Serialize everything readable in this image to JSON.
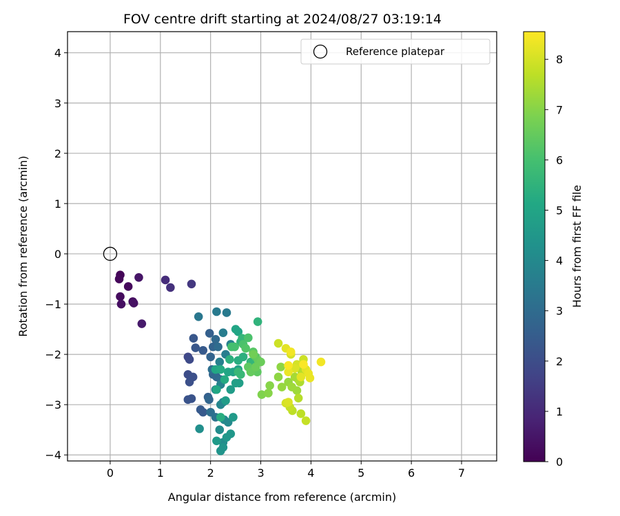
{
  "chart_data": {
    "type": "scatter",
    "title": "FOV centre drift starting at 2024/08/27 03:19:14",
    "xlabel": "Angular distance from reference (arcmin)",
    "ylabel": "Rotation from reference (arcmin)",
    "xlim": [
      -0.85,
      7.7
    ],
    "ylim": [
      -4.12,
      4.42
    ],
    "xticks": [
      0,
      1,
      2,
      3,
      4,
      5,
      6,
      7
    ],
    "yticks": [
      -4,
      -3,
      -2,
      -1,
      0,
      1,
      2,
      3,
      4
    ],
    "grid": true,
    "legend": {
      "placement": "top-right",
      "entries": [
        "Reference platepar"
      ]
    },
    "reference_point": {
      "x": 0,
      "y": 0
    },
    "colorbar": {
      "label": "Hours from first FF file",
      "range": [
        0,
        8.55
      ],
      "ticks": [
        0,
        1,
        2,
        3,
        4,
        5,
        6,
        7,
        8
      ],
      "colormap": "viridis"
    },
    "points": [
      [
        0.2,
        -0.42,
        0.1
      ],
      [
        0.18,
        -0.5,
        0.15
      ],
      [
        0.36,
        -0.65,
        0.2
      ],
      [
        0.2,
        -0.85,
        0.25
      ],
      [
        0.45,
        -0.95,
        0.3
      ],
      [
        0.22,
        -1.0,
        0.35
      ],
      [
        0.47,
        -0.98,
        0.4
      ],
      [
        0.57,
        -0.47,
        0.5
      ],
      [
        0.63,
        -1.39,
        0.6
      ],
      [
        1.1,
        -0.52,
        1.1
      ],
      [
        1.2,
        -0.67,
        1.2
      ],
      [
        1.62,
        -0.6,
        1.4
      ],
      [
        1.55,
        -2.05,
        1.8
      ],
      [
        1.58,
        -2.1,
        1.9
      ],
      [
        1.6,
        -2.45,
        2.0
      ],
      [
        1.55,
        -2.4,
        2.0
      ],
      [
        1.65,
        -2.45,
        2.1
      ],
      [
        1.58,
        -2.55,
        2.1
      ],
      [
        1.55,
        -2.9,
        2.2
      ],
      [
        1.62,
        -2.88,
        2.2
      ],
      [
        1.66,
        -1.68,
        2.3
      ],
      [
        1.7,
        -1.87,
        2.3
      ],
      [
        1.85,
        -1.92,
        2.4
      ],
      [
        1.8,
        -3.1,
        2.4
      ],
      [
        1.85,
        -3.15,
        2.4
      ],
      [
        1.95,
        -2.85,
        2.6
      ],
      [
        1.98,
        -1.58,
        2.6
      ],
      [
        2.0,
        -2.05,
        2.7
      ],
      [
        2.05,
        -1.85,
        2.7
      ],
      [
        1.97,
        -2.9,
        2.8
      ],
      [
        2.05,
        -2.4,
        2.8
      ],
      [
        2.1,
        -1.7,
        2.9
      ],
      [
        2.12,
        -2.45,
        2.9
      ],
      [
        2.15,
        -1.85,
        3.0
      ],
      [
        2.2,
        -2.5,
        3.0
      ],
      [
        2.03,
        -2.3,
        3.1
      ],
      [
        2.0,
        -3.15,
        3.1
      ],
      [
        2.1,
        -3.25,
        3.2
      ],
      [
        1.76,
        -1.25,
        3.4
      ],
      [
        2.12,
        -1.15,
        3.5
      ],
      [
        2.32,
        -1.17,
        3.5
      ],
      [
        2.25,
        -1.57,
        3.6
      ],
      [
        2.3,
        -2.0,
        3.6
      ],
      [
        2.4,
        -1.8,
        3.7
      ],
      [
        2.18,
        -2.15,
        3.7
      ],
      [
        2.2,
        -2.6,
        3.8
      ],
      [
        2.1,
        -2.7,
        3.8
      ],
      [
        2.25,
        -2.95,
        3.9
      ],
      [
        2.2,
        -3.0,
        3.9
      ],
      [
        2.27,
        -3.3,
        4.0
      ],
      [
        2.35,
        -3.35,
        4.0
      ],
      [
        2.18,
        -3.5,
        4.1
      ],
      [
        2.25,
        -3.75,
        4.1
      ],
      [
        1.78,
        -3.48,
        4.2
      ],
      [
        2.2,
        -3.92,
        4.4
      ],
      [
        2.25,
        -3.85,
        4.4
      ],
      [
        2.32,
        -3.65,
        4.5
      ],
      [
        2.4,
        -3.58,
        4.5
      ],
      [
        2.12,
        -3.72,
        4.6
      ],
      [
        2.45,
        -3.25,
        4.6
      ],
      [
        2.3,
        -2.92,
        4.7
      ],
      [
        2.4,
        -2.7,
        4.7
      ],
      [
        2.5,
        -2.57,
        4.8
      ],
      [
        2.57,
        -2.57,
        4.8
      ],
      [
        2.45,
        -2.35,
        4.9
      ],
      [
        2.55,
        -2.3,
        4.9
      ],
      [
        2.5,
        -1.5,
        5.0
      ],
      [
        2.55,
        -1.55,
        5.0
      ],
      [
        2.35,
        -2.35,
        5.0
      ],
      [
        2.1,
        -2.3,
        5.1
      ],
      [
        2.12,
        -2.7,
        5.1
      ],
      [
        2.28,
        -2.5,
        5.2
      ],
      [
        2.2,
        -2.3,
        5.2
      ],
      [
        2.2,
        -3.25,
        5.3
      ],
      [
        2.55,
        -2.12,
        5.3
      ],
      [
        2.65,
        -2.05,
        5.4
      ],
      [
        2.38,
        -2.1,
        5.4
      ],
      [
        2.6,
        -1.75,
        5.5
      ],
      [
        2.94,
        -1.35,
        5.5
      ],
      [
        2.63,
        -1.68,
        5.6
      ],
      [
        2.8,
        -2.15,
        5.6
      ],
      [
        2.55,
        -2.35,
        5.7
      ],
      [
        2.6,
        -2.4,
        5.7
      ],
      [
        2.42,
        -1.85,
        6.0
      ],
      [
        2.48,
        -1.85,
        6.0
      ],
      [
        2.65,
        -1.8,
        6.1
      ],
      [
        2.75,
        -1.67,
        6.1
      ],
      [
        2.7,
        -1.88,
        6.2
      ],
      [
        2.85,
        -1.95,
        6.3
      ],
      [
        2.9,
        -2.05,
        6.3
      ],
      [
        2.75,
        -2.25,
        6.4
      ],
      [
        2.93,
        -2.35,
        6.4
      ],
      [
        2.8,
        -2.35,
        6.5
      ],
      [
        2.95,
        -2.12,
        6.5
      ],
      [
        3.0,
        -2.15,
        6.6
      ],
      [
        2.9,
        -2.25,
        6.6
      ],
      [
        2.85,
        -2.0,
        6.7
      ],
      [
        3.02,
        -2.8,
        6.9
      ],
      [
        3.15,
        -2.77,
        7.0
      ],
      [
        3.18,
        -2.62,
        7.0
      ],
      [
        3.35,
        -2.45,
        7.1
      ],
      [
        3.4,
        -2.25,
        7.1
      ],
      [
        3.42,
        -2.65,
        7.2
      ],
      [
        3.55,
        -2.55,
        7.2
      ],
      [
        3.62,
        -2.65,
        7.3
      ],
      [
        3.72,
        -2.72,
        7.3
      ],
      [
        3.75,
        -2.5,
        7.4
      ],
      [
        3.68,
        -2.45,
        7.4
      ],
      [
        3.82,
        -2.35,
        7.5
      ],
      [
        3.78,
        -2.55,
        7.5
      ],
      [
        3.75,
        -2.87,
        7.6
      ],
      [
        3.85,
        -2.3,
        7.6
      ],
      [
        3.63,
        -3.12,
        7.7
      ],
      [
        3.8,
        -3.18,
        7.7
      ],
      [
        3.9,
        -3.32,
        7.8
      ],
      [
        3.58,
        -3.05,
        7.8
      ],
      [
        3.35,
        -1.78,
        7.9
      ],
      [
        3.85,
        -2.1,
        7.9
      ],
      [
        3.6,
        -2.0,
        8.0
      ],
      [
        3.72,
        -2.2,
        8.0
      ],
      [
        3.5,
        -2.97,
        8.0
      ],
      [
        3.55,
        -2.95,
        8.1
      ],
      [
        3.68,
        -2.28,
        8.1
      ],
      [
        3.5,
        -1.88,
        8.2
      ],
      [
        3.8,
        -2.45,
        8.2
      ],
      [
        3.9,
        -2.3,
        8.2
      ],
      [
        3.95,
        -2.38,
        8.3
      ],
      [
        3.98,
        -2.47,
        8.3
      ],
      [
        3.55,
        -2.35,
        8.3
      ],
      [
        4.2,
        -2.15,
        8.4
      ],
      [
        3.6,
        -1.95,
        8.4
      ],
      [
        3.85,
        -2.2,
        8.5
      ],
      [
        3.55,
        -2.22,
        8.5
      ]
    ]
  }
}
